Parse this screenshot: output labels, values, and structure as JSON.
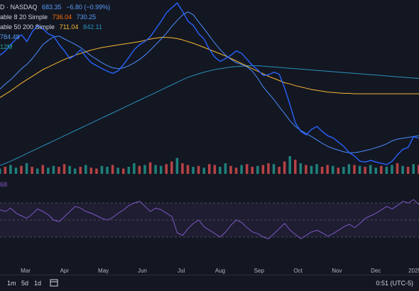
{
  "legend": {
    "ticker": "D · NASDAQ",
    "price": "683.35",
    "change": "−6.80 (−0.99%)",
    "ma1_label": "able 8 20 Simple",
    "ma1_v1": "736.04",
    "ma1_v2": "730.25",
    "ma2_label": "able 50 200 Simple",
    "ma2_v1": "711.04",
    "ma2_v2": "842.11",
    "vol_value": "784.48",
    "vol2_value": "12M",
    "rsi_value": "68"
  },
  "colors": {
    "price": "#2962ff",
    "ma8": "#ff6d00",
    "ma20": "#4c8cff",
    "ma50": "#f7b733",
    "ma200": "#2a8fbd",
    "rsi": "#7e57c2",
    "up": "#26a69a",
    "down": "#ef5350"
  },
  "bottombar": {
    "ranges": [
      "1m",
      "5d",
      "1d"
    ],
    "clock": "0:51 (UTC-5)"
  },
  "chart_data": {
    "type": "line",
    "x_ticks": [
      "Mar",
      "Apr",
      "May",
      "Jun",
      "Jul",
      "Aug",
      "Sep",
      "Oct",
      "Nov",
      "Dec",
      "2025"
    ],
    "series": [
      {
        "values": [
          880,
          890,
          905,
          918,
          928,
          912,
          935,
          950,
          942,
          930,
          925,
          905,
          890,
          872,
          880,
          893,
          876,
          862,
          855,
          848,
          842,
          837,
          843,
          858,
          875,
          893,
          905,
          912,
          924,
          942,
          960,
          980,
          992,
          1003,
          983,
          960,
          950,
          930,
          918,
          893,
          875,
          865,
          872,
          880,
          890,
          884,
          870,
          856,
          845,
          832,
          834,
          840,
          835,
          802,
          762,
          720,
          700,
          692,
          705,
          712,
          700,
          690,
          685,
          675,
          665,
          650,
          642,
          630,
          628,
          632,
          628,
          625,
          622,
          630,
          645,
          658,
          663,
          688,
          684
        ]
      },
      {
        "values": [
          800,
          812,
          822,
          835,
          848,
          858,
          872,
          888,
          905,
          915,
          923,
          925,
          918,
          912,
          905,
          898,
          888,
          878,
          870,
          862,
          855,
          850,
          848,
          850,
          855,
          862,
          870,
          880,
          892,
          905,
          918,
          932,
          948,
          962,
          975,
          982,
          975,
          958,
          942,
          925,
          908,
          893,
          880,
          870,
          862,
          858,
          852,
          842,
          825,
          805,
          790,
          775,
          758,
          742,
          725,
          712,
          702,
          695,
          688,
          680,
          672,
          665,
          660,
          656,
          652,
          650,
          650,
          652,
          655,
          658,
          662,
          666,
          671,
          678,
          682,
          684,
          686,
          688,
          690
        ]
      },
      {
        "values": [
          780,
          788,
          796,
          805,
          814,
          822,
          830,
          838,
          846,
          852,
          858,
          864,
          870,
          875,
          880,
          884,
          888,
          892,
          895,
          898,
          900,
          902,
          904,
          906,
          908,
          910,
          912,
          915,
          918,
          920,
          922,
          922,
          921,
          919,
          916,
          912,
          908,
          903,
          898,
          893,
          888,
          883,
          878,
          872,
          866,
          860,
          854,
          848,
          842,
          836,
          830,
          825,
          820,
          815,
          812,
          808,
          805,
          802,
          799,
          797,
          795,
          793,
          792,
          791,
          790,
          790,
          789,
          789,
          789,
          789,
          789,
          789,
          789,
          789,
          789,
          789,
          789,
          789,
          789
        ]
      },
      {
        "values": [
          620,
          625,
          630,
          636,
          642,
          648,
          654,
          660,
          666,
          672,
          678,
          684,
          690,
          696,
          702,
          708,
          714,
          720,
          726,
          732,
          738,
          744,
          750,
          756,
          762,
          768,
          774,
          780,
          786,
          792,
          798,
          804,
          810,
          816,
          822,
          828,
          832,
          836,
          840,
          843,
          846,
          848,
          850,
          852,
          853,
          854,
          855,
          855,
          855,
          854,
          853,
          852,
          851,
          850,
          849,
          848,
          847,
          846,
          845,
          844,
          843,
          842,
          841,
          840,
          839,
          838,
          837,
          836,
          835,
          834,
          833,
          832,
          831,
          830,
          829,
          828,
          827,
          826,
          825
        ]
      }
    ],
    "rsi": [
      62,
      60,
      64,
      58,
      55,
      52,
      57,
      63,
      60,
      56,
      50,
      48,
      54,
      60,
      66,
      64,
      60,
      58,
      55,
      52,
      50,
      53,
      58,
      62,
      67,
      70,
      72,
      66,
      60,
      64,
      62,
      58,
      54,
      35,
      32,
      40,
      46,
      50,
      42,
      38,
      34,
      30,
      36,
      44,
      50,
      47,
      41,
      36,
      34,
      30,
      28,
      34,
      40,
      46,
      38,
      33,
      28,
      32,
      36,
      38,
      35,
      31,
      34,
      38,
      42,
      45,
      41,
      46,
      52,
      55,
      58,
      62,
      66,
      63,
      67,
      72,
      70,
      74,
      68
    ],
    "rsi_levels": [
      70,
      50,
      30
    ],
    "volume": [
      0.3,
      0.4,
      0.5,
      0.35,
      0.45,
      0.6,
      0.4,
      0.3,
      0.5,
      0.35,
      0.45,
      0.4,
      0.55,
      0.45,
      0.3,
      0.4,
      0.5,
      0.35,
      0.3,
      0.45,
      0.4,
      0.5,
      0.35,
      0.3,
      0.4,
      0.6,
      0.45,
      0.5,
      0.65,
      0.5,
      0.45,
      0.55,
      0.7,
      0.9,
      0.6,
      0.5,
      0.4,
      0.45,
      0.35,
      0.55,
      0.5,
      0.4,
      0.6,
      0.45,
      0.35,
      0.5,
      0.55,
      0.4,
      0.45,
      0.5,
      0.6,
      0.55,
      0.4,
      0.7,
      1.0,
      0.8,
      0.6,
      0.5,
      0.45,
      0.55,
      0.4,
      0.5,
      0.45,
      0.35,
      0.4,
      0.55,
      0.5,
      0.45,
      0.4,
      0.5,
      0.35,
      0.45,
      0.4,
      0.5,
      0.6,
      0.45,
      0.4,
      0.55,
      0.5
    ],
    "volume_up": [
      1,
      0,
      1,
      1,
      0,
      1,
      0,
      1,
      0,
      1,
      1,
      0,
      0,
      1,
      1,
      0,
      1,
      0,
      0,
      1,
      1,
      0,
      1,
      0,
      1,
      1,
      0,
      1,
      0,
      1,
      1,
      0,
      0,
      1,
      0,
      0,
      1,
      0,
      1,
      0,
      0,
      1,
      1,
      0,
      0,
      1,
      0,
      0,
      1,
      0,
      0,
      1,
      0,
      0,
      1,
      0,
      1,
      0,
      1,
      1,
      0,
      0,
      1,
      0,
      1,
      1,
      0,
      1,
      0,
      1,
      1,
      0,
      1,
      1,
      0,
      1,
      0,
      1,
      0
    ],
    "ylim": [
      600,
      1010
    ]
  }
}
